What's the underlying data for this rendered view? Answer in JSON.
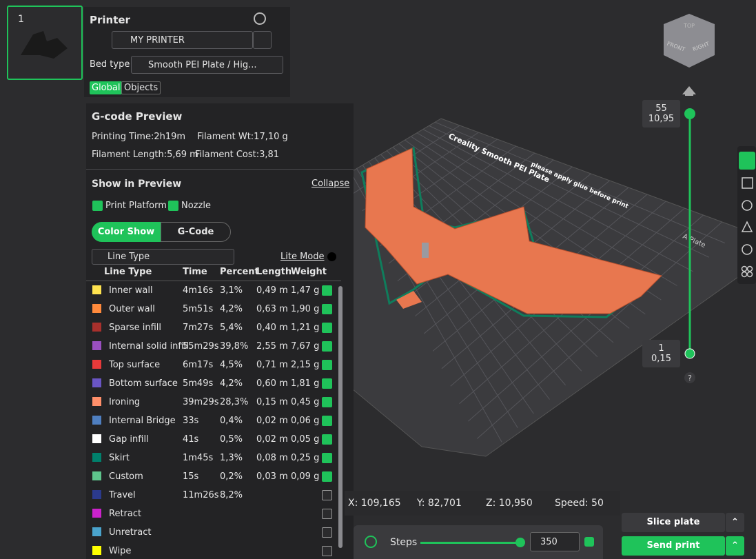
{
  "plate": {
    "number": "1"
  },
  "printer_panel": {
    "title": "Printer",
    "printer": "MY PRINTER",
    "bed_type_label": "Bed type",
    "bed_type": "Smooth PEI Plate / Hig...",
    "tabs": [
      "Global",
      "Objects"
    ]
  },
  "gcode_preview": {
    "title": "G-code Preview",
    "stats": [
      "Printing Time:2h19m",
      "Filament Wt:17,10 g",
      "Filament Length:5,69 m",
      "Filament Cost:3,81"
    ],
    "show_title": "Show in Preview",
    "collapse": "Collapse",
    "checks": [
      "Print Platform",
      "Nozzle"
    ],
    "modes": [
      "Color Show",
      "G-Code"
    ],
    "view_select": "Line Type",
    "lite_mode": "Lite Mode",
    "table": {
      "headers": [
        "Line Type",
        "Time",
        "Percent",
        "Length",
        "Weight"
      ],
      "rows": [
        {
          "color": "#ffe34f",
          "name": "Inner wall",
          "time": "4m16s",
          "percent": "3,1%",
          "length": "0,49 m",
          "weight": "1,47 g",
          "checked": true
        },
        {
          "color": "#ff8a3c",
          "name": "Outer wall",
          "time": "5m51s",
          "percent": "4,2%",
          "length": "0,63 m",
          "weight": "1,90 g",
          "checked": true
        },
        {
          "color": "#a8302c",
          "name": "Sparse infill",
          "time": "7m27s",
          "percent": "5,4%",
          "length": "0,40 m",
          "weight": "1,21 g",
          "checked": true
        },
        {
          "color": "#9a4fc0",
          "name": "Internal solid infill",
          "time": "55m29s",
          "percent": "39,8%",
          "length": "2,55 m",
          "weight": "7,67 g",
          "checked": true
        },
        {
          "color": "#e83a3a",
          "name": "Top surface",
          "time": "6m17s",
          "percent": "4,5%",
          "length": "0,71 m",
          "weight": "2,15 g",
          "checked": true
        },
        {
          "color": "#6a55c4",
          "name": "Bottom surface",
          "time": "5m49s",
          "percent": "4,2%",
          "length": "0,60 m",
          "weight": "1,81 g",
          "checked": true
        },
        {
          "color": "#ff8f6a",
          "name": "Ironing",
          "time": "39m29s",
          "percent": "28,3%",
          "length": "0,15 m",
          "weight": "0,45 g",
          "checked": true
        },
        {
          "color": "#4f7fc0",
          "name": "Internal Bridge",
          "time": "33s",
          "percent": "0,4%",
          "length": "0,02 m",
          "weight": "0,06 g",
          "checked": true
        },
        {
          "color": "#ffffff",
          "name": "Gap infill",
          "time": "41s",
          "percent": "0,5%",
          "length": "0,02 m",
          "weight": "0,05 g",
          "checked": true
        },
        {
          "color": "#00806c",
          "name": "Skirt",
          "time": "1m45s",
          "percent": "1,3%",
          "length": "0,08 m",
          "weight": "0,25 g",
          "checked": true
        },
        {
          "color": "#5ec48c",
          "name": "Custom",
          "time": "15s",
          "percent": "0,2%",
          "length": "0,03 m",
          "weight": "0,09 g",
          "checked": true
        },
        {
          "color": "#2b3a8c",
          "name": "Travel",
          "time": "11m26s",
          "percent": "8,2%",
          "checked": false
        },
        {
          "color": "#cc22cc",
          "name": "Retract",
          "checked": false
        },
        {
          "color": "#4aa3cc",
          "name": "Unretract",
          "checked": false
        },
        {
          "color": "#ffff00",
          "name": "Wipe",
          "checked": false
        }
      ]
    }
  },
  "layer_slider": {
    "top": [
      "55",
      "10,95"
    ],
    "bottom": [
      "1",
      "0,15"
    ],
    "help": "?"
  },
  "view_cube": [
    "TOP",
    "FRONT",
    "RIGHT"
  ],
  "bed": {
    "title": "Creality Smooth PEI Plate",
    "note": "please apply glue before print",
    "plate_label": "A Plate"
  },
  "status": [
    "X: 109,165",
    "Y: 82,701",
    "Z: 10,950",
    "Speed: 50"
  ],
  "steps": {
    "label": "Steps",
    "value": "350"
  },
  "buttons": {
    "slice": "Slice plate",
    "send": "Send print"
  }
}
